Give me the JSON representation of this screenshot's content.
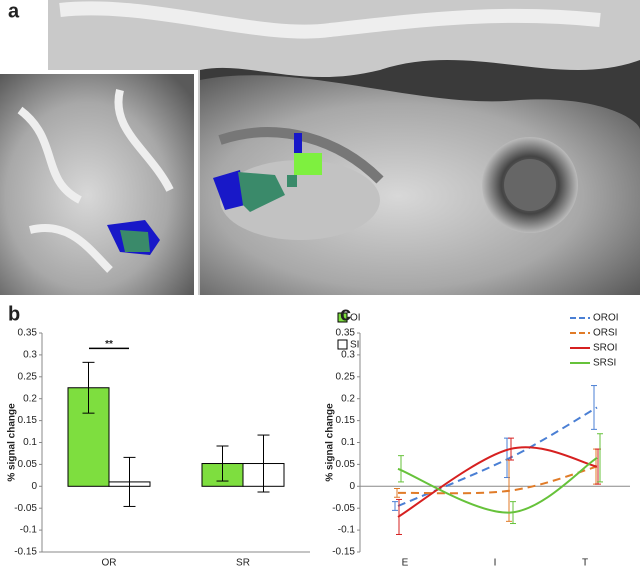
{
  "image_panel": {
    "label": "a"
  },
  "chart_data": [
    {
      "type": "bar",
      "label": "b",
      "ylabel": "% signal change",
      "categories": [
        "OR",
        "SR"
      ],
      "series": [
        {
          "name": "OI",
          "color": "#7ede3f",
          "values": [
            0.225,
            0.052
          ],
          "errors": [
            0.058,
            0.04
          ]
        },
        {
          "name": "SI",
          "color": "#ffffff",
          "values": [
            0.01,
            0.052
          ],
          "errors": [
            0.056,
            0.065
          ]
        }
      ],
      "annotation": "**",
      "ylim": [
        -0.15,
        0.35
      ],
      "yticks": [
        -0.15,
        -0.1,
        -0.05,
        0,
        0.05,
        0.1,
        0.15,
        0.2,
        0.25,
        0.3,
        0.35
      ]
    },
    {
      "type": "line",
      "label": "c",
      "ylabel": "% signal change",
      "categories": [
        "E",
        "I",
        "T"
      ],
      "series": [
        {
          "name": "OROI",
          "color": "#4a7fd4",
          "dashed": true,
          "values": [
            -0.045,
            0.065,
            0.18
          ],
          "errors": [
            0.01,
            0.045,
            0.05
          ]
        },
        {
          "name": "ORSI",
          "color": "#e07b28",
          "dashed": true,
          "values": [
            -0.015,
            -0.01,
            0.045
          ],
          "errors": [
            0.01,
            0.07,
            0.04
          ]
        },
        {
          "name": "SROI",
          "color": "#d62020",
          "dashed": false,
          "values": [
            -0.07,
            0.085,
            0.045
          ],
          "errors": [
            0.04,
            0.025,
            0.04
          ]
        },
        {
          "name": "SRSI",
          "color": "#66c23a",
          "dashed": false,
          "values": [
            0.04,
            -0.06,
            0.065
          ],
          "errors": [
            0.03,
            0.025,
            0.055
          ]
        }
      ],
      "ylim": [
        -0.15,
        0.35
      ],
      "yticks": [
        -0.15,
        -0.1,
        -0.05,
        0,
        0.05,
        0.1,
        0.15,
        0.2,
        0.25,
        0.3,
        0.35
      ]
    }
  ]
}
